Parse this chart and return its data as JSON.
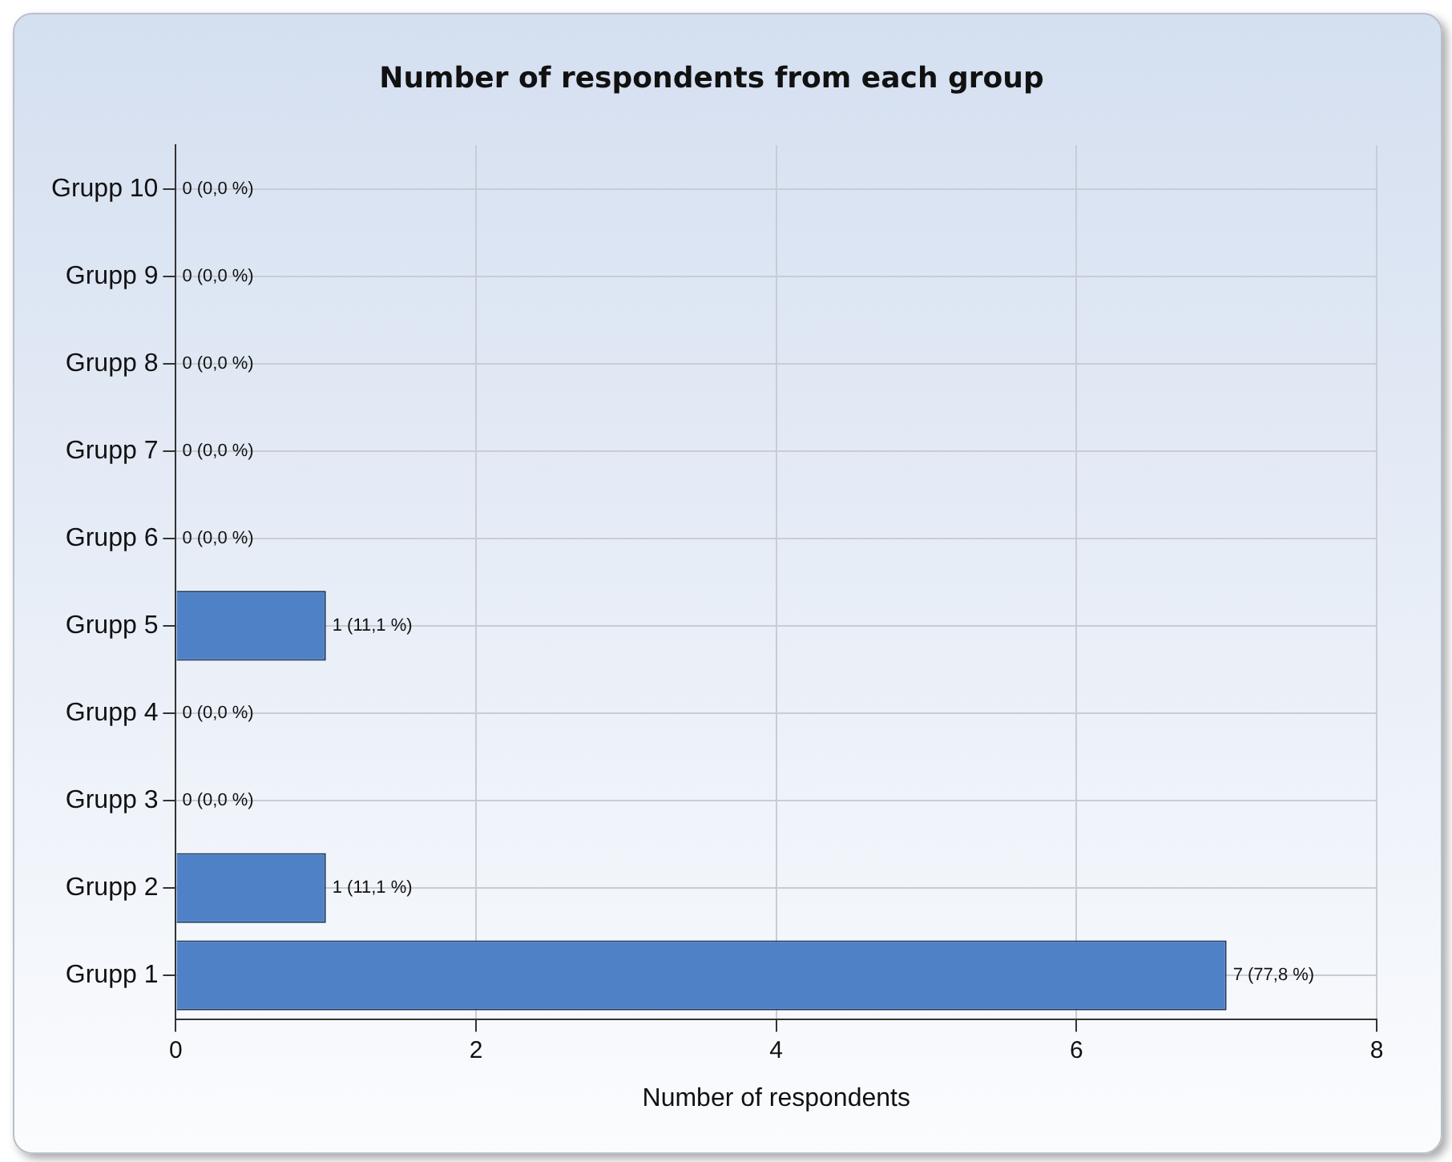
{
  "chart_data": {
    "type": "bar",
    "orientation": "horizontal",
    "title": "Number of respondents from each group",
    "xlabel": "Number of respondents",
    "categories": [
      "Grupp 10",
      "Grupp 9",
      "Grupp 8",
      "Grupp 7",
      "Grupp 6",
      "Grupp 5",
      "Grupp 4",
      "Grupp 3",
      "Grupp 2",
      "Grupp 1"
    ],
    "values": [
      0,
      0,
      0,
      0,
      0,
      1,
      0,
      0,
      1,
      7
    ],
    "value_labels": [
      "0 (0,0 %)",
      "0 (0,0 %)",
      "0 (0,0 %)",
      "0 (0,0 %)",
      "0 (0,0 %)",
      "1 (11,1 %)",
      "0 (0,0 %)",
      "0 (0,0 %)",
      "1 (11,1 %)",
      "7 (77,8 %)"
    ],
    "color": "#4f81c7",
    "xlim": [
      0,
      8
    ],
    "xticks": [
      0,
      2,
      4,
      6,
      8
    ],
    "grid": true,
    "legend": false
  }
}
